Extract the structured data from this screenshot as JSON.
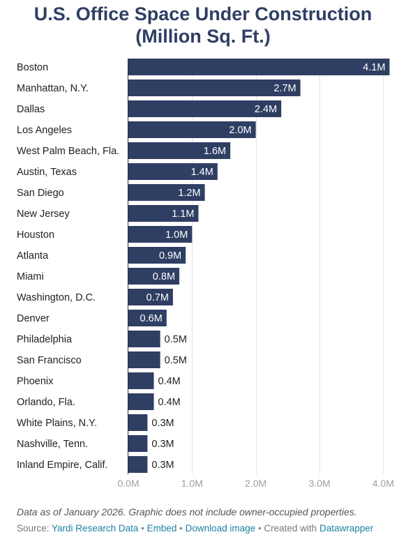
{
  "chart_data": {
    "type": "bar",
    "orientation": "horizontal",
    "title_line1": "U.S. Office Space Under Construction",
    "title_line2": "(Million Sq. Ft.)",
    "categories": [
      "Boston",
      "Manhattan, N.Y.",
      "Dallas",
      "Los Angeles",
      "West Palm Beach, Fla.",
      "Austin, Texas",
      "San Diego",
      "New Jersey",
      "Houston",
      "Atlanta",
      "Miami",
      "Washington, D.C.",
      "Denver",
      "Philadelphia",
      "San Francisco",
      "Phoenix",
      "Orlando, Fla.",
      "White Plains, N.Y.",
      "Nashville, Tenn.",
      "Inland Empire, Calif."
    ],
    "values": [
      4.1,
      2.7,
      2.4,
      2.0,
      1.6,
      1.4,
      1.2,
      1.1,
      1.0,
      0.9,
      0.8,
      0.7,
      0.6,
      0.5,
      0.5,
      0.4,
      0.4,
      0.3,
      0.3,
      0.3
    ],
    "value_labels": [
      "4.1M",
      "2.7M",
      "2.4M",
      "2.0M",
      "1.6M",
      "1.4M",
      "1.2M",
      "1.1M",
      "1.0M",
      "0.9M",
      "0.8M",
      "0.7M",
      "0.6M",
      "0.5M",
      "0.5M",
      "0.4M",
      "0.4M",
      "0.3M",
      "0.3M",
      "0.3M"
    ],
    "xlim": [
      0,
      4.15
    ],
    "xticks": [
      0,
      1,
      2,
      3,
      4
    ],
    "xtick_labels": [
      "0.0M",
      "1.0M",
      "2.0M",
      "3.0M",
      "4.0M"
    ],
    "grid": true,
    "bar_color": "#2f3e63"
  },
  "footer": {
    "note": "Data as of January 2026. Graphic does not include owner-occupied properties.",
    "source_prefix": "Source: ",
    "source_link": "Yardi Research Data",
    "sep": " • ",
    "embed": "Embed",
    "download": "Download image",
    "created_with": "Created with ",
    "datawrapper": "Datawrapper"
  }
}
